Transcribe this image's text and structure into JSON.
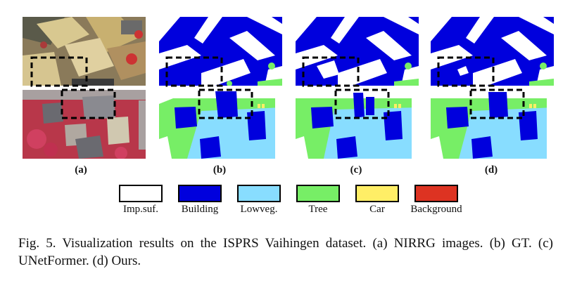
{
  "panels": [
    {
      "label": "(a)",
      "content": "NIRRG image"
    },
    {
      "label": "(b)",
      "content": "GT"
    },
    {
      "label": "(c)",
      "content": "UNetFormer"
    },
    {
      "label": "(d)",
      "content": "Ours"
    }
  ],
  "legend": [
    {
      "name": "Imp.suf.",
      "color": "#ffffff"
    },
    {
      "name": "Building",
      "color": "#0000dd"
    },
    {
      "name": "Lowveg.",
      "color": "#88ddff"
    },
    {
      "name": "Tree",
      "color": "#77ee66"
    },
    {
      "name": "Car",
      "color": "#ffee66"
    },
    {
      "name": "Background",
      "color": "#dd3322"
    }
  ],
  "caption": "Fig. 5.  Visualization results on the ISPRS Vaihingen dataset. (a) NIRRG images. (b) GT. (c) UNetFormer. (d) Ours."
}
